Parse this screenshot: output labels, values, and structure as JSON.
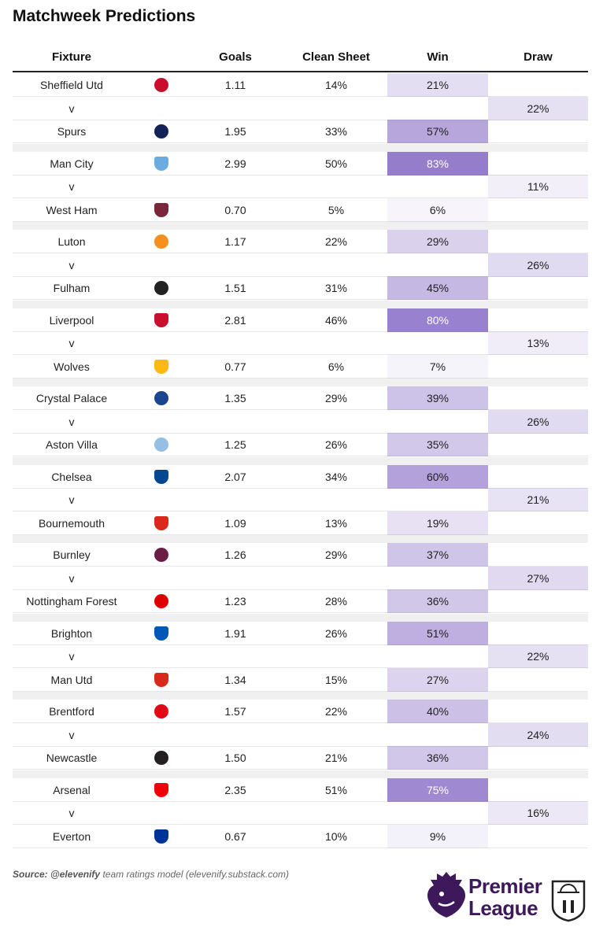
{
  "title": "Matchweek Predictions",
  "headers": {
    "fixture": "Fixture",
    "goals": "Goals",
    "clean_sheet": "Clean Sheet",
    "win": "Win",
    "draw": "Draw"
  },
  "versus": "v",
  "source_label": "Source:",
  "source_handle": "@elevenify",
  "source_rest": "team ratings model (elevenify.substack.com)",
  "logo_text": [
    "Premier",
    "League"
  ],
  "colors": {
    "win_scale": "#9e86cc",
    "draw_tint": "#ece7f6",
    "separator": "#f0f0f0",
    "brand": "#3d195b"
  },
  "chart_data": {
    "type": "table",
    "columns": [
      "Fixture",
      "Goals",
      "Clean Sheet",
      "Win",
      "Draw"
    ],
    "fixtures": [
      {
        "home": {
          "team": "Sheffield Utd",
          "crest": "#c8102e",
          "goals": "1.11",
          "clean_sheet": "14%",
          "win": "21%"
        },
        "draw": "22%",
        "away": {
          "team": "Spurs",
          "crest": "#132257",
          "goals": "1.95",
          "clean_sheet": "33%",
          "win": "57%"
        }
      },
      {
        "home": {
          "team": "Man City",
          "crest": "#6cabdd",
          "goals": "2.99",
          "clean_sheet": "50%",
          "win": "83%"
        },
        "draw": "11%",
        "away": {
          "team": "West Ham",
          "crest": "#7a263a",
          "goals": "0.70",
          "clean_sheet": "5%",
          "win": "6%"
        }
      },
      {
        "home": {
          "team": "Luton",
          "crest": "#f78f1e",
          "goals": "1.17",
          "clean_sheet": "22%",
          "win": "29%"
        },
        "draw": "26%",
        "away": {
          "team": "Fulham",
          "crest": "#222222",
          "goals": "1.51",
          "clean_sheet": "31%",
          "win": "45%"
        }
      },
      {
        "home": {
          "team": "Liverpool",
          "crest": "#c8102e",
          "goals": "2.81",
          "clean_sheet": "46%",
          "win": "80%"
        },
        "draw": "13%",
        "away": {
          "team": "Wolves",
          "crest": "#fdb913",
          "goals": "0.77",
          "clean_sheet": "6%",
          "win": "7%"
        }
      },
      {
        "home": {
          "team": "Crystal Palace",
          "crest": "#1b458f",
          "goals": "1.35",
          "clean_sheet": "29%",
          "win": "39%"
        },
        "draw": "26%",
        "away": {
          "team": "Aston Villa",
          "crest": "#95bfe5",
          "goals": "1.25",
          "clean_sheet": "26%",
          "win": "35%"
        }
      },
      {
        "home": {
          "team": "Chelsea",
          "crest": "#034694",
          "goals": "2.07",
          "clean_sheet": "34%",
          "win": "60%"
        },
        "draw": "21%",
        "away": {
          "team": "Bournemouth",
          "crest": "#da291c",
          "goals": "1.09",
          "clean_sheet": "13%",
          "win": "19%"
        }
      },
      {
        "home": {
          "team": "Burnley",
          "crest": "#6c1d45",
          "goals": "1.26",
          "clean_sheet": "29%",
          "win": "37%"
        },
        "draw": "27%",
        "away": {
          "team": "Nottingham Forest",
          "crest": "#dd0000",
          "goals": "1.23",
          "clean_sheet": "28%",
          "win": "36%"
        }
      },
      {
        "home": {
          "team": "Brighton",
          "crest": "#0057b8",
          "goals": "1.91",
          "clean_sheet": "26%",
          "win": "51%"
        },
        "draw": "22%",
        "away": {
          "team": "Man Utd",
          "crest": "#da291c",
          "goals": "1.34",
          "clean_sheet": "15%",
          "win": "27%"
        }
      },
      {
        "home": {
          "team": "Brentford",
          "crest": "#e30613",
          "goals": "1.57",
          "clean_sheet": "22%",
          "win": "40%"
        },
        "draw": "24%",
        "away": {
          "team": "Newcastle",
          "crest": "#241f20",
          "goals": "1.50",
          "clean_sheet": "21%",
          "win": "36%"
        }
      },
      {
        "home": {
          "team": "Arsenal",
          "crest": "#ef0107",
          "goals": "2.35",
          "clean_sheet": "51%",
          "win": "75%"
        },
        "draw": "16%",
        "away": {
          "team": "Everton",
          "crest": "#003399",
          "goals": "0.67",
          "clean_sheet": "10%",
          "win": "9%"
        }
      }
    ]
  }
}
